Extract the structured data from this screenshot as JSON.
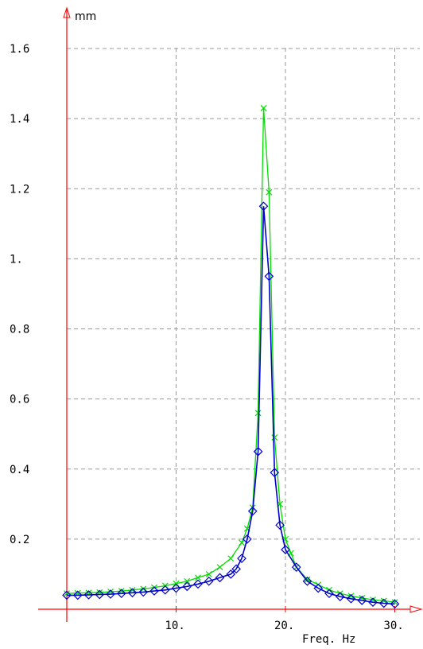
{
  "chart_data": {
    "type": "line",
    "title": "",
    "y_unit_label": "mm",
    "x_axis_label": "Freq. Hz",
    "y_tick_labels": [
      "0.2",
      "0.4",
      "0.6",
      "0.8",
      "1.",
      "1.2",
      "1.4",
      "1.6"
    ],
    "y_tick_values": [
      0.2,
      0.4,
      0.6,
      0.8,
      1.0,
      1.2,
      1.4,
      1.6
    ],
    "x_tick_labels": [
      "10.",
      "20.",
      "30."
    ],
    "x_tick_values": [
      10,
      20,
      30
    ],
    "xlim": [
      0,
      31
    ],
    "ylim": [
      0,
      1.6
    ],
    "grid": true,
    "axis_color": "#ff0000",
    "grid_color": "#999999",
    "series": [
      {
        "color": "#00dd00",
        "marker": "x",
        "x": [
          0,
          1,
          2,
          3,
          4,
          5,
          6,
          7,
          8,
          9,
          10,
          11,
          12,
          13,
          14,
          15,
          16,
          16.5,
          17,
          17.5,
          18,
          18.5,
          19,
          19.5,
          20,
          20.5,
          21,
          22,
          23,
          24,
          25,
          26,
          27,
          28,
          29,
          30
        ],
        "values": [
          0.045,
          0.046,
          0.047,
          0.048,
          0.05,
          0.052,
          0.055,
          0.058,
          0.062,
          0.067,
          0.073,
          0.08,
          0.09,
          0.1,
          0.12,
          0.145,
          0.19,
          0.23,
          0.29,
          0.56,
          1.43,
          1.19,
          0.49,
          0.3,
          0.2,
          0.16,
          0.12,
          0.085,
          0.07,
          0.055,
          0.045,
          0.038,
          0.032,
          0.027,
          0.024,
          0.02
        ]
      },
      {
        "color": "#0000cc",
        "marker": "diamond",
        "x": [
          0,
          1,
          2,
          3,
          4,
          5,
          6,
          7,
          8,
          9,
          10,
          11,
          12,
          13,
          14,
          15,
          15.5,
          16,
          16.5,
          17,
          17.5,
          18,
          18.5,
          19,
          19.5,
          20,
          21,
          22,
          23,
          24,
          25,
          26,
          27,
          28,
          29,
          30
        ],
        "values": [
          0.04,
          0.04,
          0.041,
          0.042,
          0.043,
          0.045,
          0.047,
          0.049,
          0.052,
          0.055,
          0.06,
          0.065,
          0.072,
          0.08,
          0.09,
          0.1,
          0.115,
          0.145,
          0.2,
          0.28,
          0.45,
          1.15,
          0.95,
          0.39,
          0.24,
          0.17,
          0.12,
          0.08,
          0.06,
          0.045,
          0.036,
          0.03,
          0.025,
          0.02,
          0.017,
          0.015
        ]
      }
    ]
  }
}
